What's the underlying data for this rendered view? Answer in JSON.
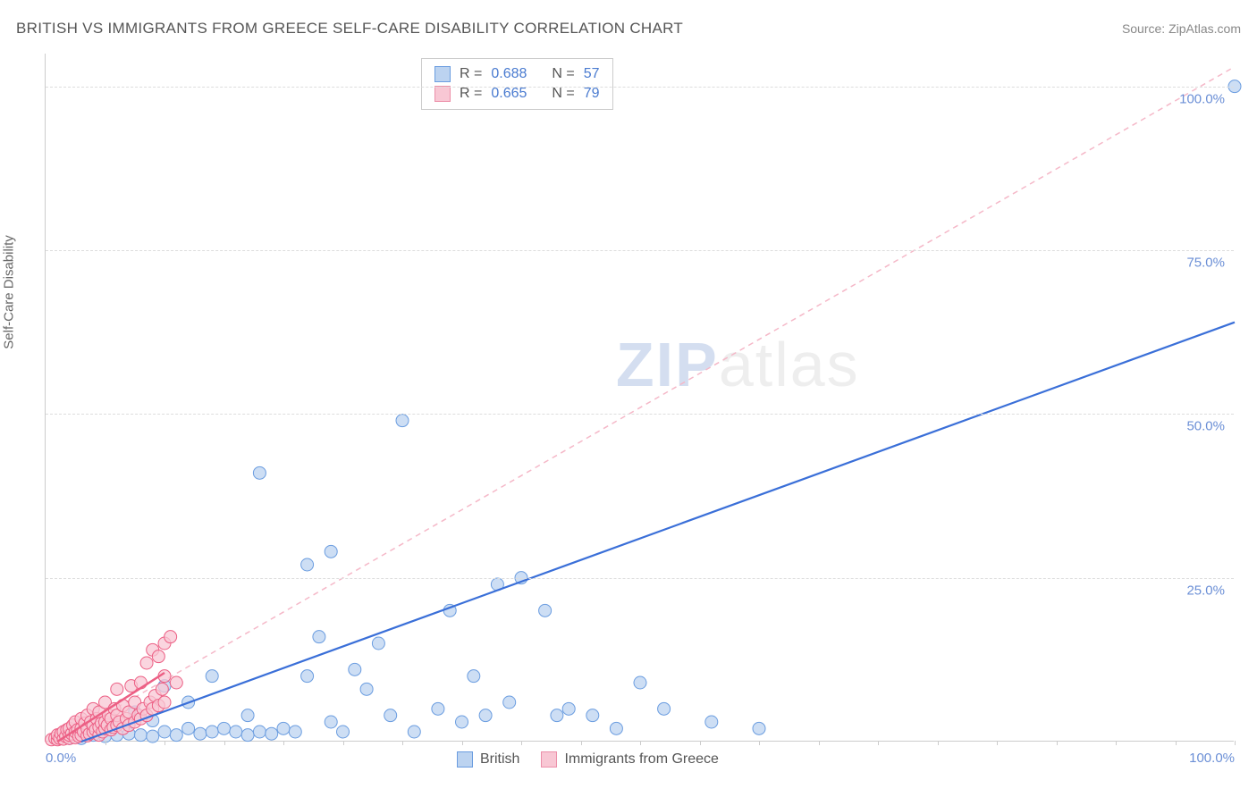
{
  "header": {
    "title": "BRITISH VS IMMIGRANTS FROM GREECE SELF-CARE DISABILITY CORRELATION CHART",
    "source": "Source: ZipAtlas.com"
  },
  "axes": {
    "y_label": "Self-Care Disability",
    "xlim": [
      0,
      100
    ],
    "ylim": [
      0,
      105
    ],
    "y_ticks": [
      {
        "v": 25,
        "label": "25.0%"
      },
      {
        "v": 50,
        "label": "50.0%"
      },
      {
        "v": 75,
        "label": "75.0%"
      },
      {
        "v": 100,
        "label": "100.0%"
      }
    ],
    "x_ticks_minor": [
      5,
      10,
      15,
      20,
      25,
      30,
      35,
      40,
      45,
      50,
      55,
      60,
      65,
      70,
      75,
      80,
      85,
      90,
      95,
      100
    ],
    "x_tick_labels": [
      {
        "v": 0,
        "label": "0.0%"
      },
      {
        "v": 100,
        "label": "100.0%"
      }
    ],
    "grid_color": "#dddddd",
    "axis_color": "#cccccc"
  },
  "watermark": {
    "zip": "ZIP",
    "atlas": "atlas"
  },
  "stats_box": {
    "rows": [
      {
        "swatch_fill": "#bcd3f0",
        "swatch_border": "#6b9de0",
        "r_label": "R =",
        "r": "0.688",
        "n_label": "N =",
        "n": "57"
      },
      {
        "swatch_fill": "#f8c7d4",
        "swatch_border": "#ec8fa9",
        "r_label": "R =",
        "r": "0.665",
        "n_label": "N =",
        "n": "79"
      }
    ]
  },
  "bottom_legend": {
    "items": [
      {
        "swatch_fill": "#bcd3f0",
        "swatch_border": "#6b9de0",
        "label": "British"
      },
      {
        "swatch_fill": "#f8c7d4",
        "swatch_border": "#ec8fa9",
        "label": "Immigrants from Greece"
      }
    ]
  },
  "series": {
    "british": {
      "color_fill": "#bcd3f0",
      "color_stroke": "#6b9de0",
      "marker_r": 7,
      "marker_opacity": 0.75,
      "trend": {
        "x1": 3,
        "y1": 0,
        "x2": 100,
        "y2": 64,
        "stroke": "#3a6fd8",
        "width": 2.2,
        "dash": "none"
      },
      "points": [
        [
          2,
          0.5
        ],
        [
          3,
          0.5
        ],
        [
          4,
          1
        ],
        [
          5,
          0.8
        ],
        [
          6,
          1
        ],
        [
          7,
          1.2
        ],
        [
          7.5,
          4.5
        ],
        [
          8,
          1
        ],
        [
          9,
          0.8
        ],
        [
          9,
          3.2
        ],
        [
          10,
          1.5
        ],
        [
          10,
          8.5
        ],
        [
          11,
          1
        ],
        [
          12,
          2
        ],
        [
          12,
          6
        ],
        [
          13,
          1.2
        ],
        [
          14,
          1.5
        ],
        [
          14,
          10
        ],
        [
          15,
          2
        ],
        [
          16,
          1.5
        ],
        [
          17,
          1
        ],
        [
          17,
          4
        ],
        [
          18,
          1.5
        ],
        [
          18,
          41
        ],
        [
          19,
          1.2
        ],
        [
          20,
          2
        ],
        [
          21,
          1.5
        ],
        [
          22,
          27
        ],
        [
          22,
          10
        ],
        [
          23,
          16
        ],
        [
          24,
          29
        ],
        [
          24,
          3
        ],
        [
          25,
          1.5
        ],
        [
          26,
          11
        ],
        [
          27,
          8
        ],
        [
          28,
          15
        ],
        [
          29,
          4
        ],
        [
          30,
          49
        ],
        [
          31,
          1.5
        ],
        [
          33,
          5
        ],
        [
          34,
          20
        ],
        [
          35,
          3
        ],
        [
          36,
          10
        ],
        [
          37,
          4
        ],
        [
          38,
          24
        ],
        [
          39,
          6
        ],
        [
          40,
          25
        ],
        [
          42,
          20
        ],
        [
          43,
          4
        ],
        [
          44,
          5
        ],
        [
          46,
          4
        ],
        [
          48,
          2
        ],
        [
          50,
          9
        ],
        [
          52,
          5
        ],
        [
          56,
          3
        ],
        [
          60,
          2
        ],
        [
          100,
          100
        ]
      ]
    },
    "greece": {
      "color_fill": "#f8c7d4",
      "color_stroke": "#ec5f84",
      "marker_r": 7,
      "marker_opacity": 0.75,
      "trend_solid": {
        "x1": 1,
        "y1": 0,
        "x2": 10,
        "y2": 10.5,
        "stroke": "#ec5f84",
        "width": 2.5
      },
      "trend_dashed": {
        "x1": 1,
        "y1": 0,
        "x2": 100,
        "y2": 103,
        "stroke": "#f5b8c8",
        "width": 1.5,
        "dash": "6,5"
      },
      "points": [
        [
          0.5,
          0.3
        ],
        [
          0.8,
          0.5
        ],
        [
          1,
          0.3
        ],
        [
          1,
          1
        ],
        [
          1.2,
          0.5
        ],
        [
          1.3,
          1.2
        ],
        [
          1.5,
          0.4
        ],
        [
          1.5,
          1.5
        ],
        [
          1.7,
          0.8
        ],
        [
          1.8,
          1.8
        ],
        [
          2,
          0.5
        ],
        [
          2,
          1
        ],
        [
          2,
          2
        ],
        [
          2.2,
          1.2
        ],
        [
          2.3,
          2.5
        ],
        [
          2.5,
          0.6
        ],
        [
          2.5,
          1.5
        ],
        [
          2.5,
          3
        ],
        [
          2.7,
          1.8
        ],
        [
          2.8,
          0.8
        ],
        [
          3,
          1
        ],
        [
          3,
          2
        ],
        [
          3,
          3.5
        ],
        [
          3.2,
          1.5
        ],
        [
          3.3,
          2.8
        ],
        [
          3.5,
          0.9
        ],
        [
          3.5,
          2
        ],
        [
          3.5,
          4
        ],
        [
          3.7,
          1.2
        ],
        [
          3.8,
          3
        ],
        [
          4,
          1.5
        ],
        [
          4,
          2.5
        ],
        [
          4,
          5
        ],
        [
          4.2,
          1.8
        ],
        [
          4.3,
          3.5
        ],
        [
          4.5,
          1
        ],
        [
          4.5,
          2.2
        ],
        [
          4.5,
          4.5
        ],
        [
          4.7,
          2.8
        ],
        [
          4.8,
          1.5
        ],
        [
          5,
          2
        ],
        [
          5,
          3
        ],
        [
          5,
          6
        ],
        [
          5.2,
          2.5
        ],
        [
          5.3,
          4
        ],
        [
          5.5,
          1.8
        ],
        [
          5.5,
          3.5
        ],
        [
          5.7,
          2.2
        ],
        [
          5.8,
          5
        ],
        [
          6,
          2.5
        ],
        [
          6,
          4
        ],
        [
          6,
          8
        ],
        [
          6.2,
          3
        ],
        [
          6.5,
          2
        ],
        [
          6.5,
          5.5
        ],
        [
          6.8,
          3.5
        ],
        [
          7,
          2.5
        ],
        [
          7,
          4.5
        ],
        [
          7.2,
          8.5
        ],
        [
          7.5,
          3
        ],
        [
          7.5,
          6
        ],
        [
          7.8,
          4
        ],
        [
          8,
          3.5
        ],
        [
          8,
          9
        ],
        [
          8.2,
          5
        ],
        [
          8.5,
          4
        ],
        [
          8.5,
          12
        ],
        [
          8.8,
          6
        ],
        [
          9,
          5
        ],
        [
          9,
          14
        ],
        [
          9.2,
          7
        ],
        [
          9.5,
          5.5
        ],
        [
          9.5,
          13
        ],
        [
          9.8,
          8
        ],
        [
          10,
          6
        ],
        [
          10,
          10
        ],
        [
          10,
          15
        ],
        [
          10.5,
          16
        ],
        [
          11,
          9
        ]
      ]
    }
  },
  "styling": {
    "background": "#ffffff",
    "title_color": "#555555",
    "title_fontsize": 17,
    "axis_label_color": "#666666",
    "tick_label_color": "#6b8fd6"
  }
}
